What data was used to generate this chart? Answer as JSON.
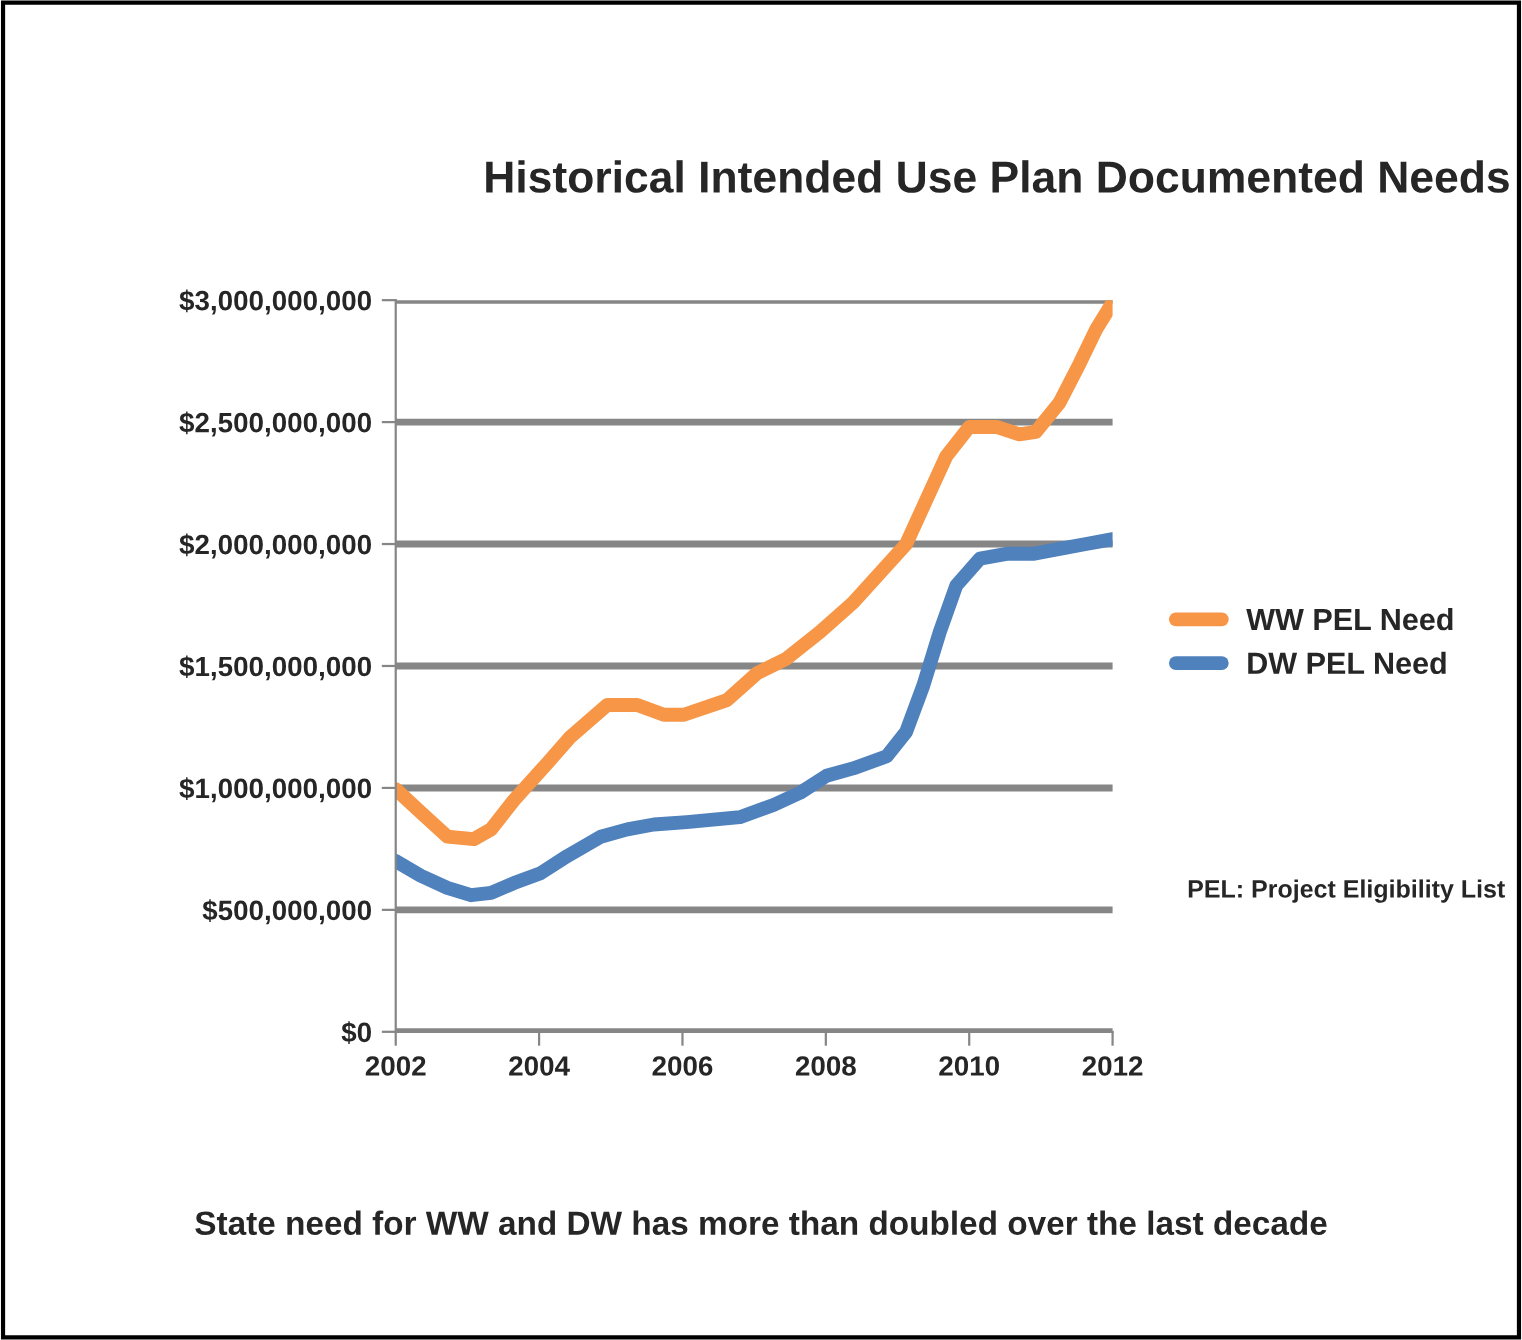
{
  "chart_data": {
    "type": "line",
    "title": "Historical Intended Use Plan Documented Needs",
    "xlim": [
      2002,
      2012
    ],
    "xticks": [
      2002,
      2004,
      2006,
      2008,
      2010,
      2012
    ],
    "ylim": [
      0,
      3000000000
    ],
    "yticks": [
      {
        "value": 0,
        "label": "$0"
      },
      {
        "value": 500000000,
        "label": "$500,000,000"
      },
      {
        "value": 1000000000,
        "label": "$1,000,000,000"
      },
      {
        "value": 1500000000,
        "label": "$1,500,000,000"
      },
      {
        "value": 2000000000,
        "label": "$2,000,000,000"
      },
      {
        "value": 2500000000,
        "label": "$2,500,000,000"
      },
      {
        "value": 3000000000,
        "label": "$3,000,000,000"
      }
    ],
    "grid": "y",
    "legend": "right",
    "marker": "none",
    "line_style": "solid",
    "series": [
      {
        "name": "WW PEL Need",
        "color": "#f79646",
        "x": [
          2002,
          2002.35,
          2002.72,
          2003.09,
          2003.33,
          2003.65,
          2004.11,
          2004.44,
          2004.95,
          2005.37,
          2005.74,
          2006.02,
          2006.62,
          2007.04,
          2007.45,
          2007.92,
          2008.38,
          2008.75,
          2009.12,
          2009.4,
          2009.68,
          2010.0,
          2010.38,
          2010.7,
          2010.93,
          2011.26,
          2011.54,
          2011.77,
          2012.0
        ],
        "values": [
          995000000,
          900000000,
          800000000,
          790000000,
          830000000,
          950000000,
          1100000000,
          1210000000,
          1340000000,
          1340000000,
          1300000000,
          1300000000,
          1360000000,
          1470000000,
          1530000000,
          1640000000,
          1760000000,
          1880000000,
          2000000000,
          2180000000,
          2360000000,
          2480000000,
          2480000000,
          2450000000,
          2460000000,
          2580000000,
          2740000000,
          2880000000,
          2990000000
        ]
      },
      {
        "name": "DW PEL Need",
        "color": "#4f81bd",
        "x": [
          2002,
          2002.35,
          2002.72,
          2003.05,
          2003.33,
          2003.65,
          2004.02,
          2004.39,
          2004.86,
          2005.23,
          2005.6,
          2006.06,
          2006.8,
          2007.27,
          2007.64,
          2008.01,
          2008.38,
          2008.85,
          2009.12,
          2009.36,
          2009.59,
          2009.82,
          2010.15,
          2010.52,
          2010.89,
          2011.26,
          2011.63,
          2012.0
        ],
        "values": [
          700000000,
          640000000,
          590000000,
          560000000,
          570000000,
          610000000,
          650000000,
          720000000,
          800000000,
          830000000,
          850000000,
          860000000,
          880000000,
          930000000,
          980000000,
          1050000000,
          1080000000,
          1130000000,
          1230000000,
          1420000000,
          1640000000,
          1830000000,
          1940000000,
          1960000000,
          1960000000,
          1980000000,
          2000000000,
          2020000000
        ]
      }
    ],
    "annotations": [
      "PEL: Project Eligibility List",
      "State need for WW and DW has more than doubled over the last decade"
    ]
  }
}
